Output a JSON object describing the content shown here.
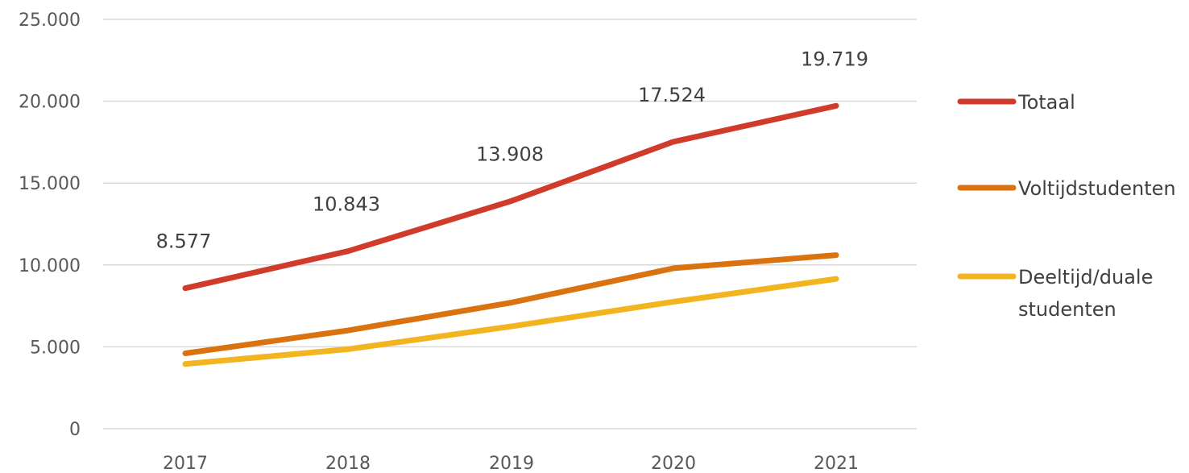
{
  "chart_data": {
    "type": "line",
    "categories": [
      "2017",
      "2018",
      "2019",
      "2020",
      "2021"
    ],
    "ylim": [
      0,
      25000
    ],
    "yticks": [
      {
        "value": 0,
        "label": "0"
      },
      {
        "value": 5000,
        "label": "5.000"
      },
      {
        "value": 10000,
        "label": "10.000"
      },
      {
        "value": 15000,
        "label": "15.000"
      },
      {
        "value": 20000,
        "label": "20.000"
      },
      {
        "value": 25000,
        "label": "25.000"
      }
    ],
    "grid": true,
    "legend_position": "right",
    "series": [
      {
        "name": "Totaal",
        "color": "#d03b2c",
        "values": [
          8577,
          10843,
          13908,
          17524,
          19719
        ],
        "data_labels": [
          "8.577",
          "10.843",
          "13.908",
          "17.524",
          "19.719"
        ]
      },
      {
        "name": "Voltijdstudenten",
        "color": "#d9720f",
        "values": [
          4600,
          6000,
          7700,
          9800,
          10600
        ],
        "data_labels": []
      },
      {
        "name": "Deeltijd/duale studenten",
        "legend_lines": [
          "Deeltijd/duale",
          "studenten"
        ],
        "color": "#f2b41f",
        "values": [
          3950,
          4850,
          6250,
          7750,
          9150
        ],
        "data_labels": []
      }
    ]
  }
}
